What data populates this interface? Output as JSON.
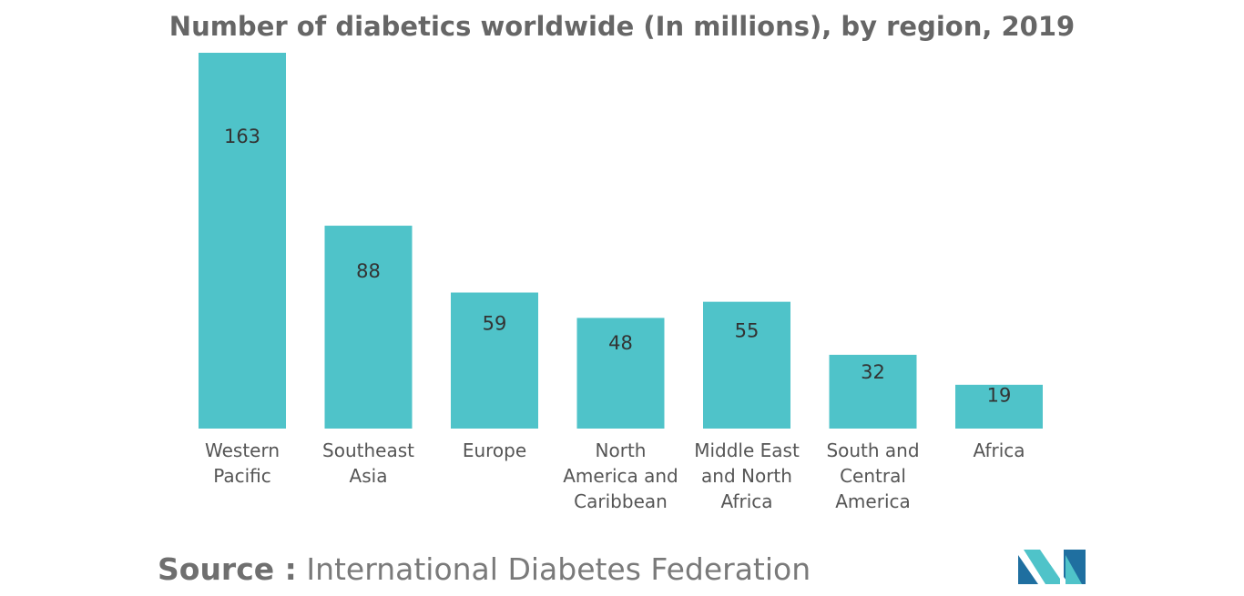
{
  "chart_data": {
    "type": "bar",
    "title": "Number of diabetics worldwide (In millions), by region, 2019",
    "categories": [
      [
        "Western",
        "Pacific"
      ],
      [
        "Southeast",
        "Asia"
      ],
      [
        "Europe"
      ],
      [
        "North",
        "America and",
        "Caribbean"
      ],
      [
        "Middle East",
        "and North",
        "Africa"
      ],
      [
        "South and",
        "Central",
        "America"
      ],
      [
        "Africa"
      ]
    ],
    "values": [
      163,
      88,
      59,
      48,
      55,
      32,
      19
    ],
    "data_labels": [
      "163",
      "88",
      "59",
      "48",
      "55",
      "32",
      "19"
    ],
    "bar_color": "#4fc3c9",
    "ylim": [
      0,
      163
    ],
    "grid": false,
    "legend": "none"
  },
  "source": {
    "label": "Source :",
    "text": " International Diabetes Federation"
  },
  "logo": {
    "icon": "mordor-logo-icon",
    "colors": [
      "#1f6fa0",
      "#4fc3c9"
    ]
  }
}
